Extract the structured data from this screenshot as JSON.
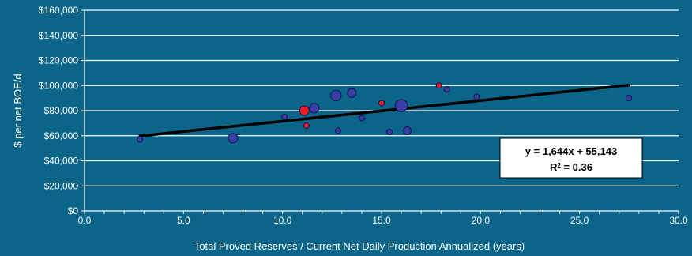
{
  "colors": {
    "background": "#0a6589",
    "axis": "#ffffff",
    "grid": "#ffffff",
    "trendline": "#000000",
    "bubble_blue": "#3a3fa6",
    "bubble_red": "#ee1c25",
    "bubble_stroke": "#10124a"
  },
  "chart_data": {
    "type": "scatter",
    "title": "",
    "xlabel": "Total Proved Reserves / Current Net Daily Production Annualized (years)",
    "ylabel": "$ per net BOE/d",
    "xlim": [
      0,
      30
    ],
    "ylim": [
      0,
      160000
    ],
    "x_ticks": [
      "0.0",
      "5.0",
      "10.0",
      "15.0",
      "20.0",
      "25.0",
      "30.0"
    ],
    "y_ticks": [
      "$0",
      "$20,000",
      "$40,000",
      "$60,000",
      "$80,000",
      "$100,000",
      "$120,000",
      "$140,000",
      "$160,000"
    ],
    "grid": true,
    "legend": false,
    "series": [
      {
        "color": "blue",
        "points": [
          {
            "x": 2.8,
            "y": 57000,
            "size": 1
          },
          {
            "x": 7.5,
            "y": 58000,
            "size": 3
          },
          {
            "x": 10.1,
            "y": 75000,
            "size": 1
          },
          {
            "x": 11.6,
            "y": 82000,
            "size": 3
          },
          {
            "x": 12.7,
            "y": 92000,
            "size": 3.5
          },
          {
            "x": 12.8,
            "y": 64000,
            "size": 1
          },
          {
            "x": 13.5,
            "y": 94000,
            "size": 2.5
          },
          {
            "x": 14.0,
            "y": 74000,
            "size": 1
          },
          {
            "x": 15.4,
            "y": 63000,
            "size": 1
          },
          {
            "x": 16.0,
            "y": 84000,
            "size": 5
          },
          {
            "x": 16.3,
            "y": 64000,
            "size": 2
          },
          {
            "x": 18.3,
            "y": 97000,
            "size": 1
          },
          {
            "x": 19.8,
            "y": 91000,
            "size": 1
          },
          {
            "x": 27.5,
            "y": 90000,
            "size": 1
          }
        ]
      },
      {
        "color": "red",
        "points": [
          {
            "x": 11.1,
            "y": 80000,
            "size": 3
          },
          {
            "x": 11.2,
            "y": 68000,
            "size": 1
          },
          {
            "x": 15.0,
            "y": 86000,
            "size": 1
          },
          {
            "x": 17.9,
            "y": 100000,
            "size": 1
          }
        ]
      }
    ],
    "trendline": {
      "x": [
        2.8,
        27.5
      ],
      "slope": 1644,
      "intercept": 55143
    },
    "annotation": {
      "equation": "y = 1,644x + 55,143",
      "r2_prefix": "R",
      "r2_exp": "2",
      "r2_value": " = 0.36"
    }
  }
}
